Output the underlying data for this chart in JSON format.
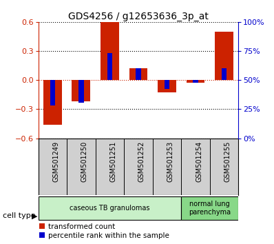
{
  "title": "GDS4256 / g12653636_3p_at",
  "samples": [
    "GSM501249",
    "GSM501250",
    "GSM501251",
    "GSM501252",
    "GSM501253",
    "GSM501254",
    "GSM501255"
  ],
  "red_values": [
    -0.46,
    -0.22,
    0.6,
    0.12,
    -0.13,
    -0.03,
    0.5
  ],
  "blue_values": [
    -0.26,
    -0.23,
    0.28,
    0.12,
    -0.09,
    -0.03,
    0.12
  ],
  "ylim": [
    -0.6,
    0.6
  ],
  "yticks_red": [
    -0.6,
    -0.3,
    0.0,
    0.3,
    0.6
  ],
  "yticks_blue_pct": [
    0,
    25,
    50,
    75,
    100
  ],
  "cell_types": [
    {
      "label": "caseous TB granulomas",
      "start": 0,
      "end": 5,
      "color": "#c8f0c8"
    },
    {
      "label": "normal lung\nparenchyma",
      "start": 5,
      "end": 7,
      "color": "#88d888"
    }
  ],
  "red_color": "#cc2200",
  "blue_color": "#0000cc",
  "plot_bg": "#ffffff",
  "label_bg": "#d0d0d0",
  "legend_red": "transformed count",
  "legend_blue": "percentile rank within the sample",
  "cell_type_label": "cell type"
}
